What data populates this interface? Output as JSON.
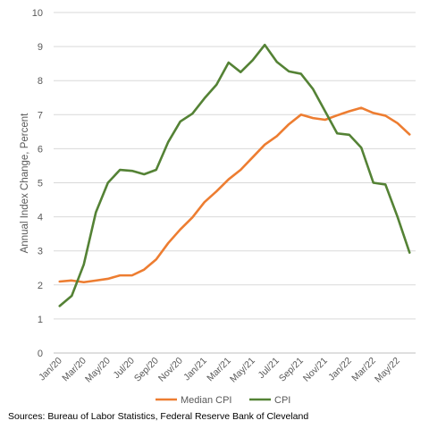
{
  "source_note": "Sources: Bureau of Labor Statistics, Federal Reserve Bank of Cleveland",
  "chart_data": {
    "type": "line",
    "title": "",
    "xlabel": "",
    "ylabel": "Annual Index Change, Percent",
    "ylim": [
      0,
      10
    ],
    "yticks": [
      0,
      1,
      2,
      3,
      4,
      5,
      6,
      7,
      8,
      9,
      10
    ],
    "grid": true,
    "legend_position": "bottom",
    "x": [
      "Jan/20",
      "Feb/20",
      "Mar/20",
      "Apr/20",
      "May/20",
      "Jun/20",
      "Jul/20",
      "Aug/20",
      "Sep/20",
      "Oct/20",
      "Nov/20",
      "Dec/20",
      "Jan/21",
      "Feb/21",
      "Mar/21",
      "Apr/21",
      "May/21",
      "Jun/21",
      "Jul/21",
      "Aug/21",
      "Sep/21",
      "Oct/21",
      "Nov/21",
      "Dec/21",
      "Jan/22",
      "Feb/22",
      "Mar/22",
      "Apr/22",
      "May/22",
      "Jun/22"
    ],
    "xtick_labels": [
      "Jan/20",
      "Mar/20",
      "May/20",
      "Jul/20",
      "Sep/20",
      "Nov/20",
      "Jan/21",
      "Mar/21",
      "May/21",
      "Jul/21",
      "Sep/21",
      "Nov/21",
      "Jan/22",
      "Mar/22",
      "May/22"
    ],
    "series": [
      {
        "name": "Median CPI",
        "color": "#ed7d31",
        "values": [
          2.1,
          2.13,
          2.08,
          2.13,
          2.18,
          2.28,
          2.28,
          2.45,
          2.75,
          3.23,
          3.63,
          3.98,
          4.43,
          4.75,
          5.1,
          5.38,
          5.75,
          6.12,
          6.37,
          6.72,
          7.0,
          6.9,
          6.85,
          6.98,
          7.1,
          7.2,
          7.05,
          6.97,
          6.75,
          6.42
        ]
      },
      {
        "name": "CPI",
        "color": "#548235",
        "values": [
          1.38,
          1.68,
          2.6,
          4.13,
          5.0,
          5.38,
          5.35,
          5.25,
          5.38,
          6.2,
          6.8,
          7.03,
          7.48,
          7.88,
          8.53,
          8.25,
          8.6,
          9.05,
          8.55,
          8.27,
          8.2,
          7.75,
          7.1,
          6.45,
          6.41,
          6.03,
          5.0,
          4.95,
          4.0,
          2.95
        ]
      }
    ]
  }
}
